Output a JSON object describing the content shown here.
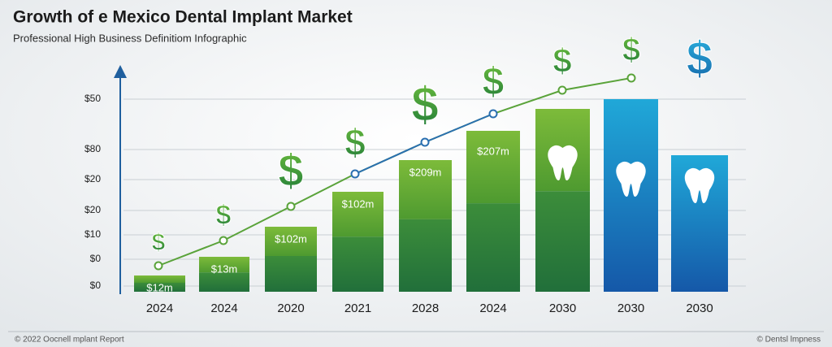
{
  "header": {
    "title": "Growth of e Mexico Dental Implant Market",
    "subtitle": "Professional High Business Definitiom Infographic"
  },
  "y_labels": [
    "$50",
    "$80",
    "$20",
    "$20",
    "$10",
    "$0",
    "$0"
  ],
  "bars": [
    {
      "year": "2024",
      "value_label": "$12m"
    },
    {
      "year": "2024",
      "value_label": "$13m"
    },
    {
      "year": "2020",
      "value_label": "$102m"
    },
    {
      "year": "2021",
      "value_label": "$102m"
    },
    {
      "year": "2028",
      "value_label": "$209m"
    },
    {
      "year": "2024",
      "value_label": "$207m"
    },
    {
      "year": "2030"
    },
    {
      "year": "2030"
    },
    {
      "year": "2030"
    }
  ],
  "icon_symbol": "$",
  "footer": {
    "left": "© 2022 Oocnell mplant Report",
    "right": "© Dentsl lmpness"
  }
}
